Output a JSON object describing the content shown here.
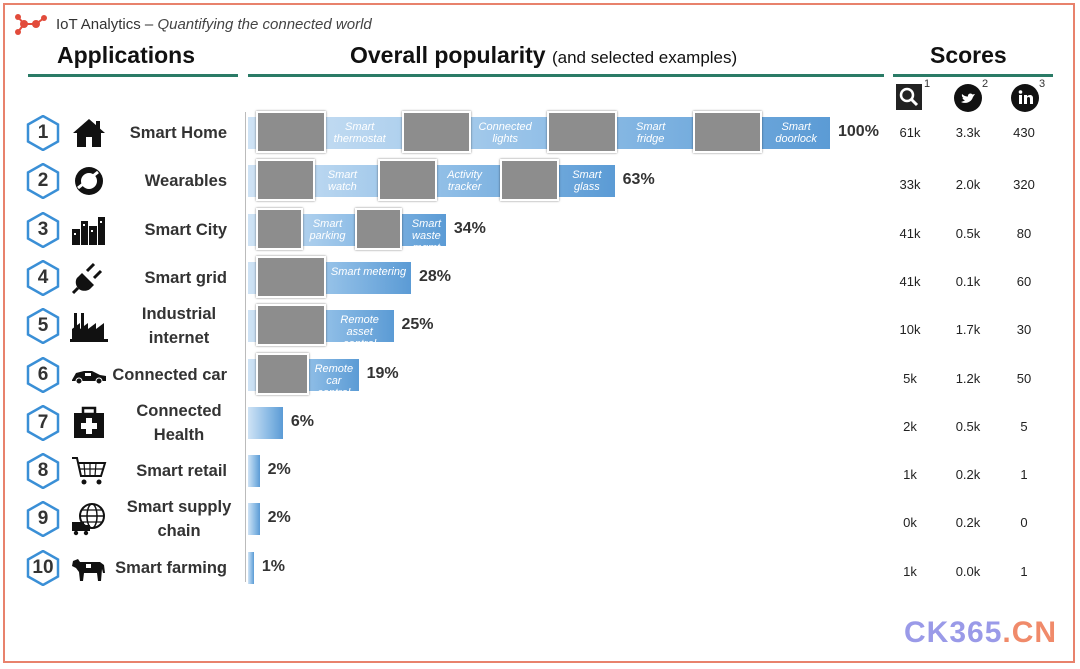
{
  "brand": {
    "name": "IoT Analytics",
    "separator": " – ",
    "tagline": "Quantifying the connected world"
  },
  "headers": {
    "applications": "Applications",
    "popularity": "Overall popularity",
    "popularity_sub": "(and selected examples)",
    "scores": "Scores"
  },
  "score_icons": [
    {
      "icon": "search-icon",
      "sup": "1"
    },
    {
      "icon": "twitter-icon",
      "sup": "2"
    },
    {
      "icon": "linkedin-icon",
      "sup": "3"
    }
  ],
  "colors": {
    "bar": "#5b9bd5",
    "rule": "#2a7b66",
    "frame": "#e8826c"
  },
  "chart_data": {
    "type": "bar",
    "orientation": "horizontal",
    "title": "Overall popularity",
    "subtitle": "(and selected examples)",
    "xlim": [
      0,
      100
    ],
    "grid": false,
    "categories": [
      "Smart Home",
      "Wearables",
      "Smart City",
      "Smart grid",
      "Industrial internet",
      "Connected car",
      "Connected Health",
      "Smart retail",
      "Smart supply chain",
      "Smart farming"
    ],
    "ranks": [
      "1",
      "2",
      "3",
      "4",
      "5",
      "6",
      "7",
      "8",
      "9",
      "10"
    ],
    "values": [
      100,
      63,
      34,
      28,
      25,
      19,
      6,
      2,
      2,
      1
    ],
    "value_labels": [
      "100%",
      "63%",
      "34%",
      "28%",
      "25%",
      "19%",
      "6%",
      "2%",
      "2%",
      "1%"
    ],
    "examples": [
      [
        "Smart thermostat",
        "Connected lights",
        "Smart fridge",
        "Smart doorlock"
      ],
      [
        "Smart watch",
        "Activity tracker",
        "Smart glass"
      ],
      [
        "Smart parking",
        "Smart waste mgmt"
      ],
      [
        "Smart metering"
      ],
      [
        "Remote asset control"
      ],
      [
        "Remote car control"
      ],
      [],
      [],
      [],
      []
    ],
    "scores": {
      "search": [
        "61k",
        "33k",
        "41k",
        "41k",
        "10k",
        "5k",
        "2k",
        "1k",
        "0k",
        "1k"
      ],
      "twitter": [
        "3.3k",
        "2.0k",
        "0.5k",
        "0.1k",
        "1.7k",
        "1.2k",
        "0.5k",
        "0.2k",
        "0.2k",
        "0.0k"
      ],
      "linkedin": [
        "430",
        "320",
        "80",
        "60",
        "30",
        "50",
        "5",
        "1",
        "0",
        "1"
      ]
    }
  },
  "app_icons": [
    "house-icon",
    "wearable-ring-icon",
    "city-skyline-icon",
    "power-plug-icon",
    "factory-icon",
    "car-icon",
    "first-aid-kit-icon",
    "shopping-cart-icon",
    "globe-truck-icon",
    "cow-icon"
  ],
  "watermark": {
    "part1": "CK365",
    "part2": ".CN"
  }
}
